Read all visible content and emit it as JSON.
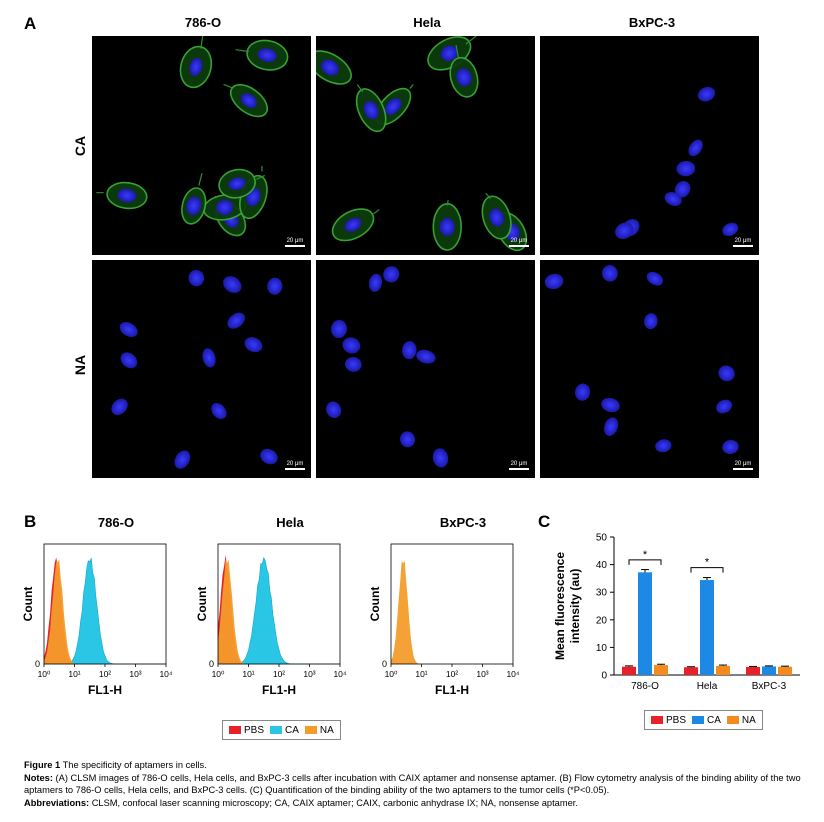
{
  "panelA": {
    "letter": "A",
    "columns": [
      "786-O",
      "Hela",
      "BxPC-3"
    ],
    "rows": [
      "CA",
      "NA"
    ],
    "scalebar": "20 μm"
  },
  "panelB": {
    "letter": "B",
    "titles": [
      "786-O",
      "Hela",
      "BxPC-3"
    ],
    "ylabel": "Count",
    "xlabel": "FL1-H",
    "y_zero": "0",
    "xticks": [
      "10⁰",
      "10¹",
      "10²",
      "10³",
      "10⁴"
    ]
  },
  "panelC": {
    "letter": "C"
  },
  "legend": {
    "items": [
      {
        "label": "PBS",
        "color": "#e8202a"
      },
      {
        "label": "CA",
        "color": "#1e88e5"
      },
      {
        "label": "NA",
        "color": "#f38b1e"
      }
    ],
    "legendB": [
      {
        "label": "PBS",
        "color": "#e8202a"
      },
      {
        "label": "CA",
        "color": "#29c6e6"
      },
      {
        "label": "NA",
        "color": "#f39c2a"
      }
    ]
  },
  "chart_data": {
    "type": "bar",
    "categories": [
      "786-O",
      "Hela",
      "BxPC-3"
    ],
    "series": [
      {
        "name": "PBS",
        "values": [
          3,
          2.8,
          2.9
        ],
        "errors": [
          0.3,
          0.2,
          0.2
        ]
      },
      {
        "name": "CA",
        "values": [
          37.2,
          34.4,
          3.1
        ],
        "errors": [
          1.0,
          0.9,
          0.2
        ]
      },
      {
        "name": "NA",
        "values": [
          3.6,
          3.3,
          3.0
        ],
        "errors": [
          0.3,
          0.3,
          0.2
        ]
      }
    ],
    "ylabel": "Mean fluorescence intensity (au)",
    "ylabel_lines": [
      "Mean fluorescence",
      "intensity (au)"
    ],
    "ylim": [
      0,
      50
    ],
    "yticks": [
      0,
      10,
      20,
      30,
      40,
      50
    ],
    "significance": [
      "*",
      "*"
    ],
    "colors": [
      "#e8202a",
      "#1e88e5",
      "#f38b1e"
    ]
  },
  "caption": {
    "figure_label": "Figure 1",
    "figure_title": "The specificity of aptamers in cells.",
    "notes_label": "Notes:",
    "notes_text": "(A) CLSM images of 786-O cells, Hela cells, and BxPC-3 cells after incubation with CAIX aptamer and nonsense aptamer. (B) Flow cytometry analysis of the binding ability of the two aptamers to 786-O cells, Hela cells, and BxPC-3 cells. (C) Quantification of the binding ability of the two aptamers to the tumor cells (*P<0.05).",
    "abbrev_label": "Abbreviations:",
    "abbrev_text": "CLSM, confocal laser scanning microscopy; CA, CAIX aptamer; CAIX, carbonic anhydrase IX; NA, nonsense aptamer."
  }
}
